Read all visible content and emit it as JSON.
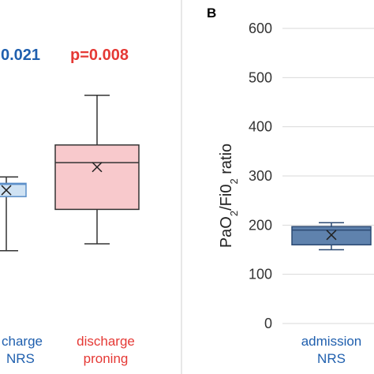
{
  "chart_data": [
    {
      "type": "box",
      "panel": "",
      "series": [
        {
          "name": "discharge NRS",
          "label_lines": [
            "charge",
            "NRS"
          ],
          "label_color": "#1f5fae",
          "fill": "#cfe2f3",
          "stroke": "#5b8fc9",
          "pvalue": "0.021",
          "pvalue_color": "#1f5fae",
          "min": 148,
          "q1": 258,
          "median": 283,
          "q3": 285,
          "max": 298,
          "mean": 271
        },
        {
          "name": "discharge proning",
          "label_lines": [
            "discharge",
            "proning"
          ],
          "label_color": "#e53935",
          "fill": "#f8c9cc",
          "stroke": "#333333",
          "pvalue": "p=0.008",
          "pvalue_color": "#e53935",
          "min": 162,
          "q1": 232,
          "median": 327,
          "q3": 363,
          "max": 464,
          "mean": 318
        }
      ]
    },
    {
      "type": "box",
      "panel": "B",
      "ylabel": "PaO2/FiO2 ratio",
      "ylim": [
        0,
        600
      ],
      "yticks": [
        "0",
        "100",
        "200",
        "300",
        "400",
        "500",
        "600"
      ],
      "series": [
        {
          "name": "admission NRS",
          "label_lines": [
            "admission",
            "NRS"
          ],
          "label_color": "#1f5fae",
          "fill": "#5f82ad",
          "stroke": "#2c4a73",
          "min": 150,
          "q1": 160,
          "median": 190,
          "q3": 197,
          "max": 205,
          "mean": 180
        }
      ]
    }
  ]
}
